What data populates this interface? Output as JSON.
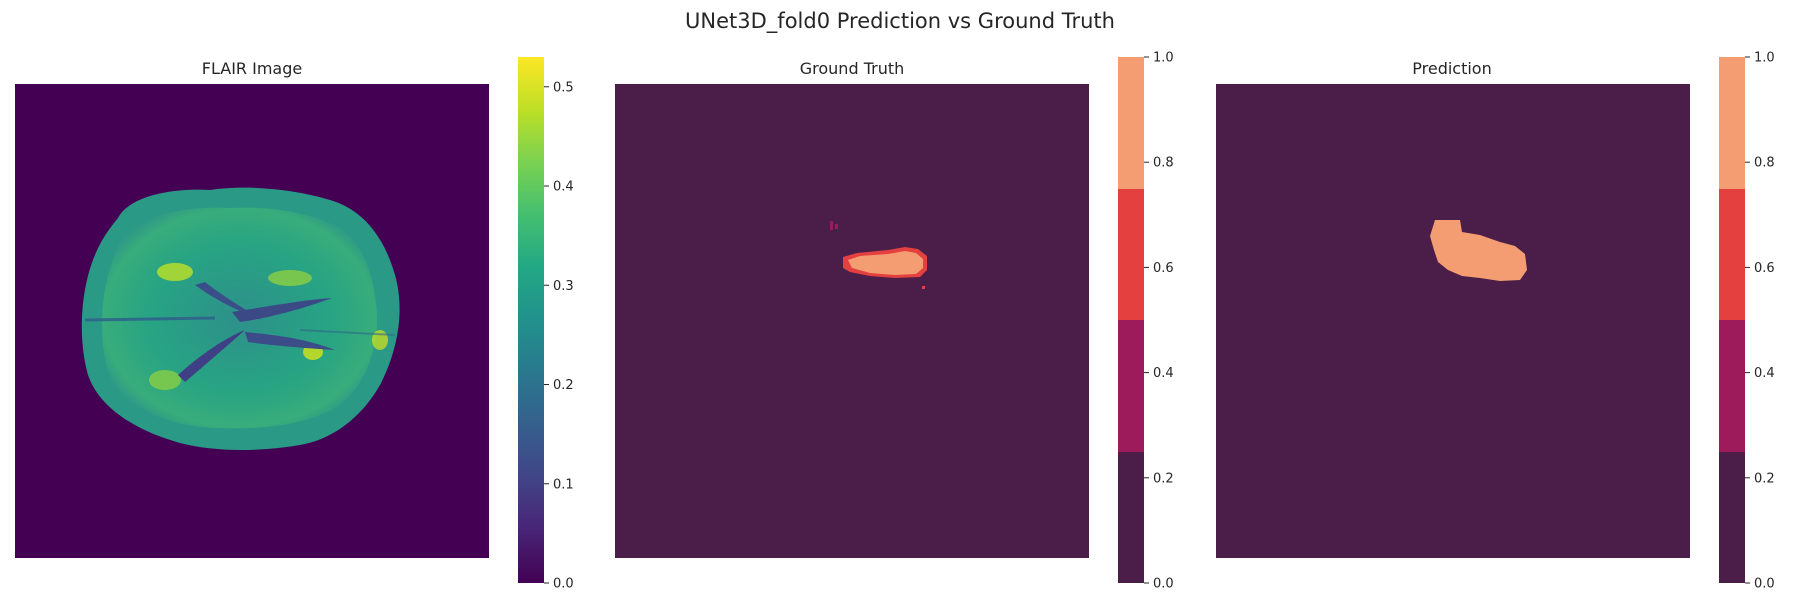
{
  "figure": {
    "title": "UNet3D_fold0 Prediction vs Ground Truth"
  },
  "chart_data": [
    {
      "type": "heatmap",
      "title": "FLAIR Image",
      "description_of_content": "axial brain MRI slice",
      "colormap": "viridis",
      "colorbar": {
        "range": [
          0.0,
          0.53
        ],
        "ticks": [
          "0.0",
          "0.1",
          "0.2",
          "0.3",
          "0.4",
          "0.5"
        ],
        "tick_values": [
          0.0,
          0.1,
          0.2,
          0.3,
          0.4,
          0.5
        ]
      },
      "colors": {
        "background": "#440154",
        "tissue": "#2a9d7f",
        "bright": "#b8de29"
      }
    },
    {
      "type": "heatmap",
      "title": "Ground Truth",
      "colormap": "rocket (4 levels)",
      "colorbar": {
        "range": [
          0.0,
          1.0
        ],
        "ticks": [
          "0.0",
          "0.2",
          "0.4",
          "0.6",
          "0.8",
          "1.0"
        ],
        "tick_values": [
          0.0,
          0.2,
          0.4,
          0.6,
          0.8,
          1.0
        ],
        "levels": [
          "#4a1e48",
          "#9e1b5b",
          "#e3403f",
          "#f49d72"
        ]
      }
    },
    {
      "type": "heatmap",
      "title": "Prediction",
      "colormap": "rocket (4 levels)",
      "colorbar": {
        "range": [
          0.0,
          1.0
        ],
        "ticks": [
          "0.0",
          "0.2",
          "0.4",
          "0.6",
          "0.8",
          "1.0"
        ],
        "tick_values": [
          0.0,
          0.2,
          0.4,
          0.6,
          0.8,
          1.0
        ],
        "levels": [
          "#4a1e48",
          "#9e1b5b",
          "#e3403f",
          "#f49d72"
        ]
      }
    }
  ]
}
